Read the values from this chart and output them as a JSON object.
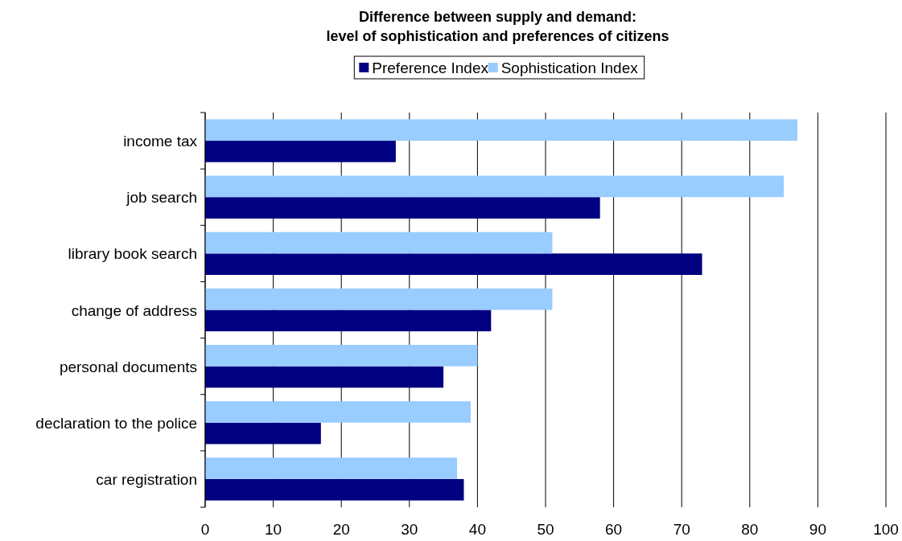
{
  "chart_data": {
    "type": "bar",
    "orientation": "horizontal",
    "title": "Difference between supply and demand:\nlevel of sophistication and preferences of citizens",
    "categories": [
      "income tax",
      "job search",
      "library book search",
      "change of address",
      "personal documents",
      "declaration to the police",
      "car registration"
    ],
    "series": [
      {
        "name": "Preference Index",
        "color": "#000080",
        "values": [
          28,
          58,
          73,
          42,
          35,
          17,
          38
        ]
      },
      {
        "name": "Sophistication Index",
        "color": "#99ccff",
        "values": [
          87,
          85,
          51,
          51,
          40,
          39,
          37
        ]
      }
    ],
    "xlim": [
      0,
      100
    ],
    "xticks": [
      0,
      10,
      20,
      30,
      40,
      50,
      60,
      70,
      80,
      90,
      100
    ],
    "grid": "x",
    "legend": "top"
  }
}
